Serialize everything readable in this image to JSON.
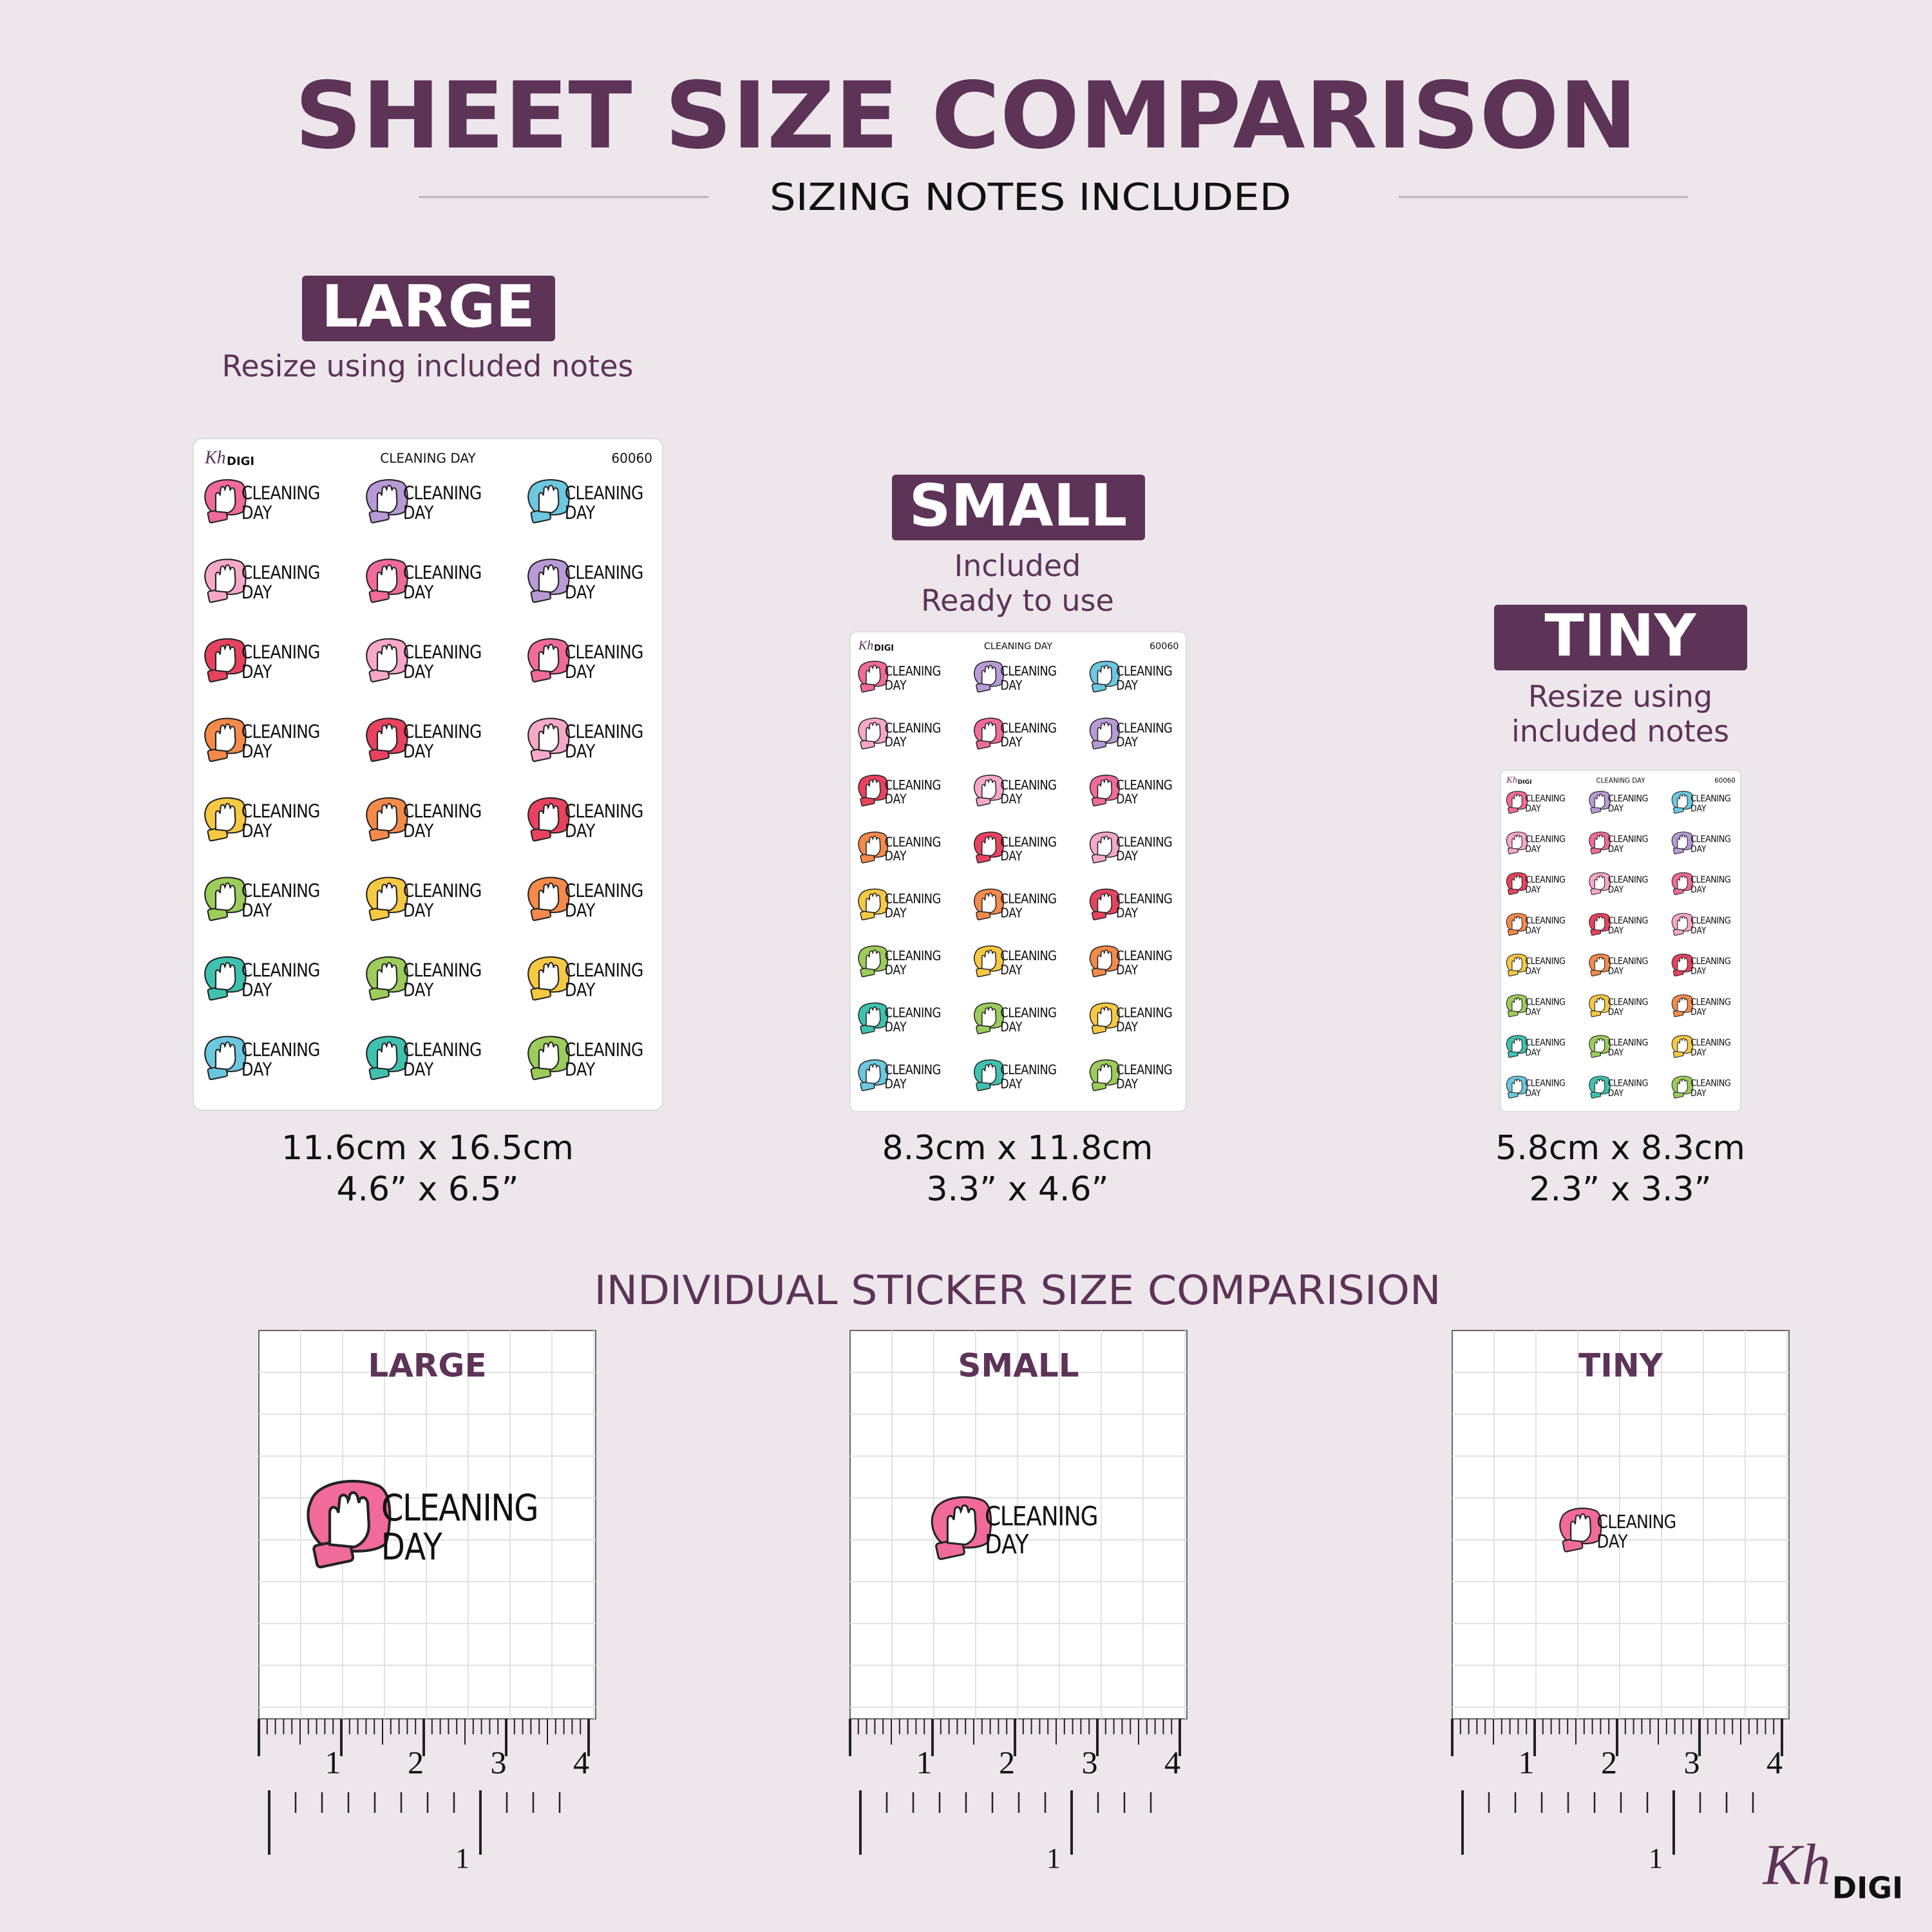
{
  "header": {
    "title": "SHEET SIZE COMPARISON",
    "subtitle": "SIZING NOTES INCLUDED"
  },
  "sheets": [
    {
      "label": "LARGE",
      "notes": [
        "Resize using included notes"
      ],
      "metric": "11.6cm x 16.5cm",
      "imperial": "4.6” x 6.5”"
    },
    {
      "label": "SMALL",
      "notes": [
        "Included",
        "Ready to use"
      ],
      "metric": "8.3cm x 11.8cm",
      "imperial": "3.3” x 4.6”"
    },
    {
      "label": "TINY",
      "notes": [
        "Resize using",
        "included notes"
      ],
      "metric": "5.8cm x 8.3cm",
      "imperial": "2.3” x 3.3”"
    }
  ],
  "sheet_header": {
    "script": "Kh",
    "brand": "DIGI",
    "title": "CLEANING DAY",
    "code": "60060"
  },
  "sticker_text": [
    "CLEANING",
    "DAY"
  ],
  "comparison": {
    "title": "INDIVIDUAL STICKER SIZE COMPARISION",
    "panels": [
      "LARGE",
      "SMALL",
      "TINY"
    ]
  },
  "ruler": {
    "cm": [
      "1",
      "2",
      "3",
      "4"
    ],
    "inch": "1"
  },
  "logo": {
    "script": "Kh",
    "text": "DIGI"
  }
}
